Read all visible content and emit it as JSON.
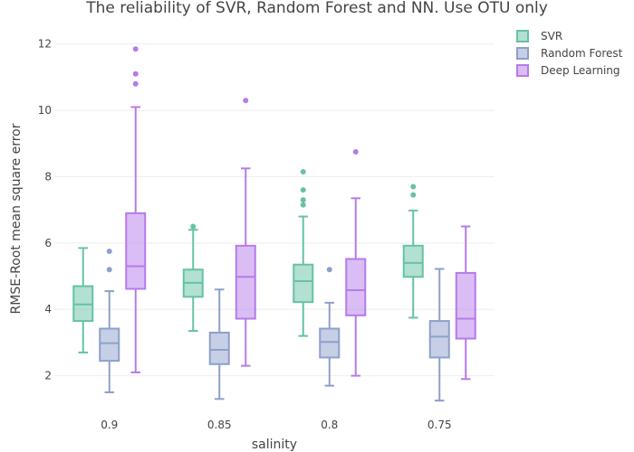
{
  "chart_data": {
    "type": "box",
    "title": "The reliability of SVR, Random Forest and NN. Use OTU only",
    "xlabel": "salinity",
    "ylabel": "RMSE-Root mean square error",
    "categories": [
      "0.9",
      "0.85",
      "0.8",
      "0.75"
    ],
    "ylim": [
      0.9,
      12.7
    ],
    "yticks": [
      2,
      4,
      6,
      8,
      10,
      12
    ],
    "grid": true,
    "legend_position": "top-right",
    "series": [
      {
        "name": "SVR",
        "color": "#66c2a5",
        "boxes": [
          {
            "min": 2.7,
            "q1": 3.65,
            "median": 4.15,
            "q3": 4.7,
            "max": 5.85,
            "outliers": []
          },
          {
            "min": 3.35,
            "q1": 4.38,
            "median": 4.8,
            "q3": 5.2,
            "max": 6.4,
            "outliers": [
              6.5
            ]
          },
          {
            "min": 3.2,
            "q1": 4.22,
            "median": 4.85,
            "q3": 5.35,
            "max": 6.8,
            "outliers": [
              7.15,
              7.3,
              7.6,
              8.15
            ]
          },
          {
            "min": 3.75,
            "q1": 4.98,
            "median": 5.4,
            "q3": 5.92,
            "max": 6.98,
            "outliers": [
              7.45,
              7.7
            ]
          }
        ]
      },
      {
        "name": "Random Forest",
        "color": "#8da0cb",
        "boxes": [
          {
            "min": 1.5,
            "q1": 2.45,
            "median": 2.98,
            "q3": 3.42,
            "max": 4.55,
            "outliers": [
              5.2,
              5.75
            ]
          },
          {
            "min": 1.3,
            "q1": 2.35,
            "median": 2.78,
            "q3": 3.3,
            "max": 4.6,
            "outliers": []
          },
          {
            "min": 1.7,
            "q1": 2.55,
            "median": 3.02,
            "q3": 3.42,
            "max": 4.2,
            "outliers": [
              5.2
            ]
          },
          {
            "min": 1.25,
            "q1": 2.55,
            "median": 3.18,
            "q3": 3.65,
            "max": 5.22,
            "outliers": []
          }
        ]
      },
      {
        "name": "Deep Learning",
        "color": "#b57bea",
        "boxes": [
          {
            "min": 2.1,
            "q1": 4.62,
            "median": 5.3,
            "q3": 6.9,
            "max": 10.1,
            "outliers": [
              10.8,
              11.1,
              11.85
            ]
          },
          {
            "min": 2.3,
            "q1": 3.72,
            "median": 4.98,
            "q3": 5.92,
            "max": 8.25,
            "outliers": [
              10.3
            ]
          },
          {
            "min": 2.0,
            "q1": 3.82,
            "median": 4.58,
            "q3": 5.52,
            "max": 7.35,
            "outliers": [
              8.75
            ]
          },
          {
            "min": 1.9,
            "q1": 3.12,
            "median": 3.72,
            "q3": 5.1,
            "max": 6.5,
            "outliers": []
          }
        ]
      }
    ]
  }
}
